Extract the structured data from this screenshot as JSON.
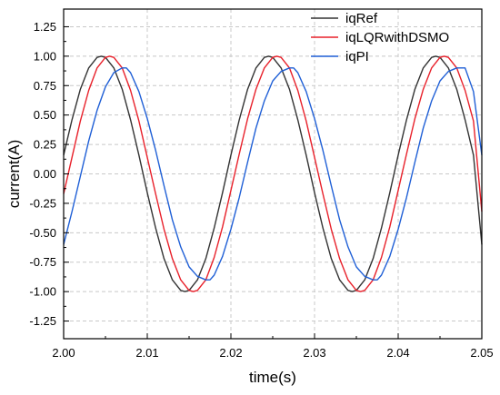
{
  "chart_data": {
    "type": "line",
    "title": "",
    "xlabel": "time(s)",
    "ylabel": "current(A)",
    "xlim": [
      2.0,
      2.05
    ],
    "ylim": [
      -1.4,
      1.4
    ],
    "xticks": [
      2.0,
      2.01,
      2.02,
      2.03,
      2.04,
      2.05
    ],
    "xtick_labels": [
      "2.00",
      "2.01",
      "2.02",
      "2.03",
      "2.04",
      "2.05"
    ],
    "yticks": [
      1.25,
      1.0,
      0.75,
      0.5,
      0.25,
      0.0,
      -0.25,
      -0.5,
      -0.75,
      -1.0,
      -1.25
    ],
    "ytick_labels": [
      "1.25",
      "1.00",
      "0.75",
      "0.50",
      "0.25",
      "0.00",
      "-0.25",
      "-0.50",
      "-0.75",
      "-1.00",
      "-1.25"
    ],
    "grid": true,
    "legend_position": "top-right",
    "series": [
      {
        "name": "iqRef",
        "color": "#333333",
        "x": [
          2.0,
          2.001,
          2.002,
          2.003,
          2.004,
          2.0045,
          2.005,
          2.006,
          2.007,
          2.008,
          2.009,
          2.01,
          2.011,
          2.012,
          2.013,
          2.014,
          2.0145,
          2.015,
          2.016,
          2.017,
          2.018,
          2.019,
          2.02,
          2.021,
          2.022,
          2.023,
          2.024,
          2.0245,
          2.025,
          2.026,
          2.027,
          2.028,
          2.029,
          2.03,
          2.031,
          2.032,
          2.033,
          2.034,
          2.0345,
          2.035,
          2.036,
          2.037,
          2.038,
          2.039,
          2.04,
          2.041,
          2.042,
          2.043,
          2.044,
          2.0445,
          2.045,
          2.046,
          2.047,
          2.048,
          2.049,
          2.05
        ],
        "y": [
          0.16,
          0.46,
          0.72,
          0.9,
          0.99,
          1.0,
          0.99,
          0.9,
          0.72,
          0.46,
          0.16,
          -0.16,
          -0.46,
          -0.72,
          -0.9,
          -0.99,
          -1.0,
          -0.99,
          -0.9,
          -0.72,
          -0.46,
          -0.16,
          0.16,
          0.46,
          0.72,
          0.9,
          0.99,
          1.0,
          0.99,
          0.9,
          0.72,
          0.46,
          0.16,
          -0.16,
          -0.46,
          -0.72,
          -0.9,
          -0.99,
          -1.0,
          -0.99,
          -0.9,
          -0.72,
          -0.46,
          -0.16,
          0.16,
          0.46,
          0.72,
          0.9,
          0.99,
          1.0,
          0.99,
          0.9,
          0.72,
          0.46,
          0.16,
          -0.6
        ]
      },
      {
        "name": "iqLQRwithDSMO",
        "color": "#e8202a",
        "x": [
          2.0,
          2.001,
          2.002,
          2.003,
          2.004,
          2.005,
          2.0055,
          2.006,
          2.007,
          2.008,
          2.009,
          2.01,
          2.011,
          2.012,
          2.013,
          2.014,
          2.015,
          2.0155,
          2.016,
          2.017,
          2.018,
          2.019,
          2.02,
          2.021,
          2.022,
          2.023,
          2.024,
          2.025,
          2.0255,
          2.026,
          2.027,
          2.028,
          2.029,
          2.03,
          2.031,
          2.032,
          2.033,
          2.034,
          2.035,
          2.0355,
          2.036,
          2.037,
          2.038,
          2.039,
          2.04,
          2.041,
          2.042,
          2.043,
          2.044,
          2.045,
          2.0455,
          2.046,
          2.047,
          2.048,
          2.049,
          2.05
        ],
        "y": [
          -0.17,
          0.14,
          0.45,
          0.71,
          0.9,
          0.99,
          1.0,
          0.99,
          0.9,
          0.71,
          0.45,
          0.14,
          -0.17,
          -0.47,
          -0.72,
          -0.9,
          -0.99,
          -1.0,
          -0.99,
          -0.9,
          -0.71,
          -0.45,
          -0.14,
          0.17,
          0.47,
          0.72,
          0.9,
          0.99,
          1.0,
          0.99,
          0.9,
          0.71,
          0.45,
          0.14,
          -0.17,
          -0.47,
          -0.72,
          -0.9,
          -0.99,
          -1.0,
          -0.99,
          -0.9,
          -0.71,
          -0.45,
          -0.14,
          0.17,
          0.47,
          0.72,
          0.9,
          0.99,
          1.0,
          0.99,
          0.9,
          0.71,
          0.45,
          -0.32
        ]
      },
      {
        "name": "iqPI",
        "color": "#1f5fd6",
        "x": [
          2.0,
          2.001,
          2.002,
          2.003,
          2.004,
          2.005,
          2.006,
          2.007,
          2.0075,
          2.008,
          2.009,
          2.01,
          2.011,
          2.012,
          2.013,
          2.014,
          2.015,
          2.016,
          2.017,
          2.0175,
          2.018,
          2.019,
          2.02,
          2.021,
          2.022,
          2.023,
          2.024,
          2.025,
          2.026,
          2.027,
          2.0275,
          2.028,
          2.029,
          2.03,
          2.031,
          2.032,
          2.033,
          2.034,
          2.035,
          2.036,
          2.037,
          2.0375,
          2.038,
          2.039,
          2.04,
          2.041,
          2.042,
          2.043,
          2.044,
          2.045,
          2.046,
          2.047,
          2.048,
          2.049,
          2.05
        ],
        "y": [
          -0.6,
          -0.32,
          -0.02,
          0.28,
          0.54,
          0.74,
          0.86,
          0.9,
          0.9,
          0.86,
          0.7,
          0.47,
          0.2,
          -0.1,
          -0.39,
          -0.62,
          -0.79,
          -0.87,
          -0.9,
          -0.9,
          -0.86,
          -0.7,
          -0.47,
          -0.2,
          0.1,
          0.39,
          0.62,
          0.79,
          0.87,
          0.9,
          0.9,
          0.86,
          0.7,
          0.47,
          0.2,
          -0.1,
          -0.39,
          -0.62,
          -0.79,
          -0.87,
          -0.9,
          -0.9,
          -0.86,
          -0.7,
          -0.47,
          -0.2,
          0.1,
          0.39,
          0.62,
          0.79,
          0.87,
          0.9,
          0.9,
          0.7,
          0.16
        ]
      }
    ]
  }
}
